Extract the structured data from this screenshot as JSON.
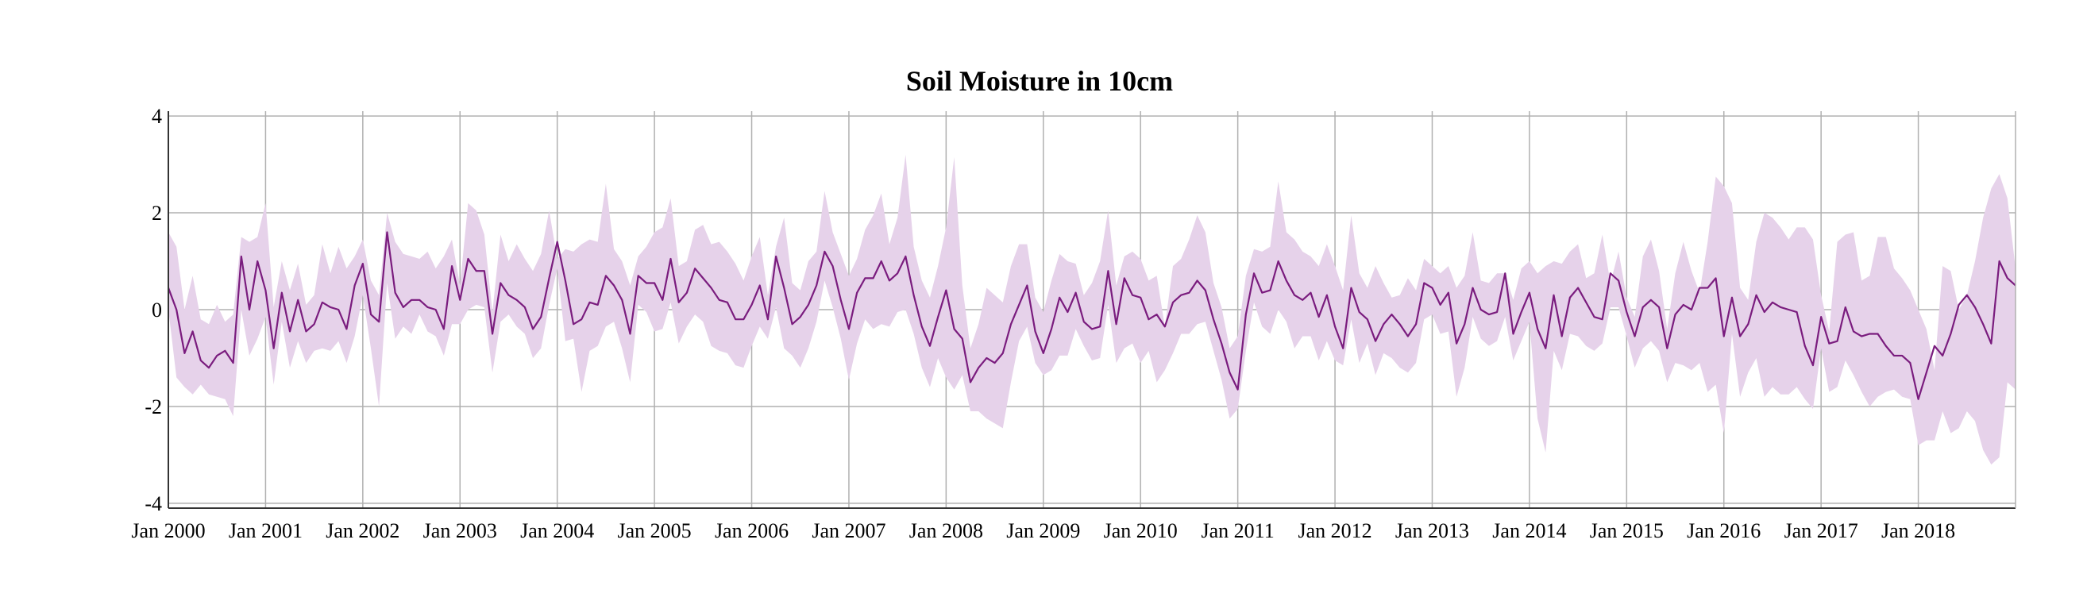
{
  "chart_data": {
    "type": "area",
    "title": "Soil Moisture in 10cm",
    "xlabel": "",
    "ylabel": "",
    "x_start": "2000-01",
    "x_end": "2018-12",
    "x_frequency": "monthly",
    "ylim": [
      -4.1,
      4.1
    ],
    "y_ticks": [
      4,
      2,
      0,
      -2,
      -4
    ],
    "x_tick_labels": [
      "Jan 2000",
      "Jan 2001",
      "Jan 2002",
      "Jan 2003",
      "Jan 2004",
      "Jan 2005",
      "Jan 2006",
      "Jan 2007",
      "Jan 2008",
      "Jan 2009",
      "Jan 2010",
      "Jan 2011",
      "Jan 2012",
      "Jan 2013",
      "Jan 2014",
      "Jan 2015",
      "Jan 2016",
      "Jan 2017",
      "Jan 2018"
    ],
    "grid": true,
    "colors": {
      "line": "#7a1c7e",
      "band": "#e6d2ea",
      "grid": "#b0b0b0",
      "axis": "#333333"
    },
    "series": [
      {
        "values": [
          0.45,
          0.0,
          -0.9,
          -0.45,
          -1.05,
          -1.2,
          -0.95,
          -0.85,
          -1.1,
          1.1,
          0.0,
          1.0,
          0.4,
          -0.8,
          0.35,
          -0.45,
          0.2,
          -0.45,
          -0.3,
          0.15,
          0.05,
          0.0,
          -0.4,
          0.5,
          0.95,
          -0.1,
          -0.25,
          1.6,
          0.35,
          0.05,
          0.2,
          0.2,
          0.05,
          0.0,
          -0.4,
          0.9,
          0.2,
          1.05,
          0.8,
          0.8,
          -0.5,
          0.55,
          0.3,
          0.2,
          0.05,
          -0.4,
          -0.15,
          0.65,
          1.4,
          0.6,
          -0.3,
          -0.2,
          0.15,
          0.1,
          0.7,
          0.5,
          0.2,
          -0.5,
          0.7,
          0.55,
          0.55,
          0.2,
          1.05,
          0.15,
          0.35,
          0.85,
          0.65,
          0.45,
          0.2,
          0.15,
          -0.2,
          -0.2,
          0.1,
          0.5,
          -0.2,
          1.1,
          0.45,
          -0.3,
          -0.15,
          0.1,
          0.5,
          1.2,
          0.9,
          0.2,
          -0.4,
          0.35,
          0.65,
          0.65,
          1.0,
          0.6,
          0.75,
          1.1,
          0.3,
          -0.35,
          -0.75,
          -0.15,
          0.4,
          -0.4,
          -0.6,
          -1.5,
          -1.2,
          -1.0,
          -1.1,
          -0.9,
          -0.3,
          0.1,
          0.5,
          -0.45,
          -0.9,
          -0.4,
          0.25,
          -0.05,
          0.35,
          -0.25,
          -0.4,
          -0.35,
          0.8,
          -0.3,
          0.65,
          0.3,
          0.25,
          -0.2,
          -0.1,
          -0.35,
          0.15,
          0.3,
          0.35,
          0.6,
          0.4,
          -0.2,
          -0.7,
          -1.3,
          -1.65,
          -0.1,
          0.75,
          0.35,
          0.4,
          1.0,
          0.6,
          0.3,
          0.2,
          0.35,
          -0.15,
          0.3,
          -0.35,
          -0.8,
          0.45,
          -0.05,
          -0.2,
          -0.65,
          -0.3,
          -0.1,
          -0.3,
          -0.55,
          -0.3,
          0.55,
          0.45,
          0.1,
          0.35,
          -0.7,
          -0.3,
          0.45,
          0.0,
          -0.1,
          -0.05,
          0.75,
          -0.5,
          -0.05,
          0.35,
          -0.4,
          -0.8,
          0.3,
          -0.55,
          0.25,
          0.45,
          0.15,
          -0.15,
          -0.2,
          0.75,
          0.6,
          -0.05,
          -0.55,
          0.05,
          0.2,
          0.05,
          -0.8,
          -0.1,
          0.1,
          0.0,
          0.45,
          0.45,
          0.65,
          -0.55,
          0.25,
          -0.55,
          -0.3,
          0.3,
          -0.05,
          0.15,
          0.05,
          0.0,
          -0.05,
          -0.75,
          -1.15,
          -0.15,
          -0.7,
          -0.65,
          0.05,
          -0.45,
          -0.55,
          -0.5,
          -0.5,
          -0.75,
          -0.95,
          -0.95,
          -1.1,
          -1.85,
          -1.3,
          -0.75,
          -0.95,
          -0.5,
          0.1,
          0.3,
          0.05,
          -0.3,
          -0.7,
          1.0,
          0.65,
          0.5
        ]
      },
      {
        "kind": "range_band",
        "upper": [
          1.6,
          1.3,
          0.0,
          0.7,
          -0.2,
          -0.3,
          0.1,
          -0.25,
          -0.1,
          1.5,
          1.4,
          1.5,
          2.2,
          0.05,
          1.0,
          0.4,
          0.95,
          0.1,
          0.3,
          1.35,
          0.75,
          1.3,
          0.85,
          1.1,
          1.45,
          0.6,
          0.3,
          2.0,
          1.4,
          1.15,
          1.1,
          1.05,
          1.2,
          0.85,
          1.1,
          1.45,
          0.5,
          2.2,
          2.05,
          1.55,
          -0.05,
          1.55,
          1.0,
          1.35,
          1.05,
          0.8,
          1.15,
          2.05,
          1.05,
          1.25,
          1.2,
          1.35,
          1.45,
          1.4,
          2.6,
          1.25,
          1.0,
          0.5,
          1.1,
          1.3,
          1.6,
          1.7,
          2.3,
          0.9,
          1.0,
          1.65,
          1.75,
          1.35,
          1.4,
          1.2,
          0.95,
          0.6,
          1.1,
          1.5,
          0.3,
          1.3,
          1.9,
          0.55,
          0.4,
          1.0,
          1.2,
          2.45,
          1.6,
          1.15,
          0.7,
          1.05,
          1.65,
          1.95,
          2.4,
          1.35,
          1.9,
          3.2,
          1.3,
          0.6,
          0.25,
          0.9,
          1.7,
          3.15,
          0.5,
          -0.8,
          -0.3,
          0.45,
          0.3,
          0.15,
          0.9,
          1.35,
          1.35,
          0.25,
          -0.05,
          0.6,
          1.15,
          1.0,
          0.95,
          0.3,
          0.55,
          1.0,
          2.05,
          0.5,
          1.1,
          1.2,
          1.05,
          0.6,
          0.7,
          -0.35,
          0.9,
          1.05,
          1.45,
          1.95,
          1.6,
          0.55,
          0.05,
          -0.8,
          -0.55,
          0.7,
          1.25,
          1.2,
          1.3,
          2.65,
          1.6,
          1.45,
          1.2,
          1.1,
          0.9,
          1.35,
          0.9,
          0.4,
          1.95,
          0.75,
          0.45,
          0.9,
          0.55,
          0.25,
          0.3,
          0.65,
          0.4,
          1.05,
          0.9,
          0.75,
          0.9,
          0.45,
          0.7,
          1.6,
          0.6,
          0.55,
          0.75,
          0.75,
          0.2,
          0.85,
          1.0,
          0.75,
          0.9,
          1.0,
          0.95,
          1.2,
          1.35,
          0.65,
          0.75,
          1.55,
          0.55,
          1.2,
          0.25,
          -0.15,
          1.1,
          1.45,
          0.8,
          -0.4,
          0.75,
          1.4,
          0.8,
          0.35,
          1.4,
          2.75,
          2.55,
          2.2,
          0.45,
          0.2,
          1.4,
          2.0,
          1.9,
          1.7,
          1.45,
          1.7,
          1.7,
          1.45,
          0.3,
          -0.45,
          1.4,
          1.55,
          1.6,
          0.6,
          0.7,
          1.5,
          1.5,
          0.85,
          0.65,
          0.4,
          0.0,
          -0.4,
          -1.25,
          0.9,
          0.8,
          0.0,
          0.3,
          1.0,
          1.9,
          2.5,
          2.8,
          2.3,
          0.85,
          2.4,
          2.2,
          1.75
        ]
      },
      {
        "kind": "range_band",
        "lower": [
          0.0,
          -1.4,
          -1.6,
          -1.75,
          -1.55,
          -1.75,
          -1.8,
          -1.85,
          -2.2,
          0.0,
          -0.95,
          -0.6,
          -0.15,
          -1.55,
          -0.25,
          -1.2,
          -0.65,
          -1.1,
          -0.85,
          -0.8,
          -0.85,
          -0.65,
          -1.1,
          -0.55,
          0.3,
          -0.8,
          -2.0,
          0.55,
          -0.6,
          -0.35,
          -0.5,
          -0.1,
          -0.45,
          -0.55,
          -0.95,
          -0.3,
          -0.3,
          0.0,
          0.1,
          0.05,
          -1.3,
          -0.25,
          -0.1,
          -0.35,
          -0.5,
          -1.0,
          -0.8,
          0.1,
          0.85,
          -0.65,
          -0.6,
          -1.7,
          -0.85,
          -0.75,
          -0.35,
          -0.25,
          -0.8,
          -1.5,
          0.1,
          -0.05,
          -0.45,
          -0.4,
          0.15,
          -0.7,
          -0.35,
          -0.1,
          -0.25,
          -0.75,
          -0.85,
          -0.9,
          -1.15,
          -1.2,
          -0.75,
          -0.35,
          -0.6,
          0.05,
          -0.8,
          -0.95,
          -1.2,
          -0.8,
          -0.25,
          0.6,
          0.05,
          -0.6,
          -1.45,
          -0.7,
          -0.2,
          -0.4,
          -0.3,
          -0.35,
          -0.05,
          0.0,
          -0.5,
          -1.2,
          -1.6,
          -1.0,
          -1.4,
          -1.65,
          -1.35,
          -2.1,
          -2.1,
          -2.25,
          -2.35,
          -2.45,
          -1.5,
          -0.65,
          -0.35,
          -1.1,
          -1.35,
          -1.25,
          -0.95,
          -0.95,
          -0.4,
          -0.75,
          -1.05,
          -1.0,
          0.1,
          -1.1,
          -0.8,
          -0.7,
          -1.1,
          -0.85,
          -1.5,
          -1.25,
          -0.9,
          -0.5,
          -0.5,
          -0.3,
          -0.25,
          -0.85,
          -1.45,
          -2.25,
          -2.05,
          -0.85,
          0.15,
          -0.35,
          -0.5,
          0.0,
          -0.25,
          -0.8,
          -0.55,
          -0.55,
          -1.05,
          -0.65,
          -1.05,
          -1.15,
          -0.2,
          -1.1,
          -0.7,
          -1.35,
          -0.9,
          -1.0,
          -1.2,
          -1.3,
          -1.1,
          -0.2,
          -0.1,
          -0.5,
          -0.45,
          -1.8,
          -1.2,
          -0.15,
          -0.6,
          -0.75,
          -0.65,
          -0.15,
          -1.05,
          -0.65,
          -0.25,
          -2.25,
          -2.95,
          -0.85,
          -1.25,
          -0.5,
          -0.55,
          -0.75,
          -0.85,
          -0.7,
          0.05,
          0.05,
          -0.55,
          -1.2,
          -0.8,
          -0.65,
          -0.85,
          -1.5,
          -1.1,
          -1.15,
          -1.25,
          -1.1,
          -1.7,
          -1.55,
          -2.55,
          -0.5,
          -1.8,
          -1.3,
          -1.0,
          -1.8,
          -1.6,
          -1.75,
          -1.75,
          -1.6,
          -1.85,
          -2.05,
          -0.8,
          -1.7,
          -1.6,
          -1.05,
          -1.35,
          -1.7,
          -2.0,
          -1.8,
          -1.7,
          -1.65,
          -1.8,
          -1.85,
          -2.8,
          -2.7,
          -2.7,
          -2.1,
          -2.55,
          -2.45,
          -2.1,
          -2.3,
          -2.9,
          -3.2,
          -3.05,
          -1.5,
          -1.65,
          -1.05
        ]
      }
    ]
  }
}
